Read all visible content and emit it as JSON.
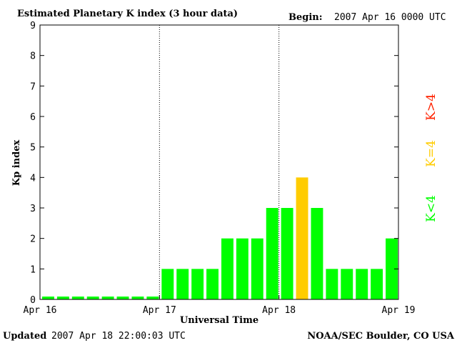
{
  "header": {
    "title": "Estimated Planetary K index (3 hour data)",
    "begin_label": "Begin:",
    "begin_value": "2007 Apr 16 0000 UTC"
  },
  "footer": {
    "updated_label": "Updated",
    "updated_value": "2007 Apr 18 22:00:03 UTC",
    "source": "NOAA/SEC Boulder, CO USA"
  },
  "legend": {
    "high": "K>4",
    "equal": "K=4",
    "low": "K<4"
  },
  "colors": {
    "low": "#00ff00",
    "equal": "#ffcc00",
    "high": "#ff2200",
    "axis": "#000000",
    "gridline": "#000000"
  },
  "chart_data": {
    "type": "bar",
    "title": "Estimated Planetary K index (3 hour data)",
    "xlabel": "Universal Time",
    "ylabel": "Kp index",
    "ylim": [
      0,
      9
    ],
    "yticks": [
      0,
      1,
      2,
      3,
      4,
      5,
      6,
      7,
      8,
      9
    ],
    "xlim": [
      "2007-04-16 00:00",
      "2007-04-19 00:00"
    ],
    "xticks": [
      "Apr 16",
      "Apr 17",
      "Apr 18",
      "Apr 19"
    ],
    "day_dividers": [
      "Apr 17",
      "Apr 18"
    ],
    "interval_hours": 3,
    "series": [
      {
        "values": [
          0,
          0,
          0,
          0,
          0,
          0,
          0,
          0,
          1,
          1,
          1,
          1,
          2,
          2,
          2,
          3,
          3,
          4,
          3,
          1,
          1,
          1,
          1,
          2
        ]
      }
    ]
  }
}
